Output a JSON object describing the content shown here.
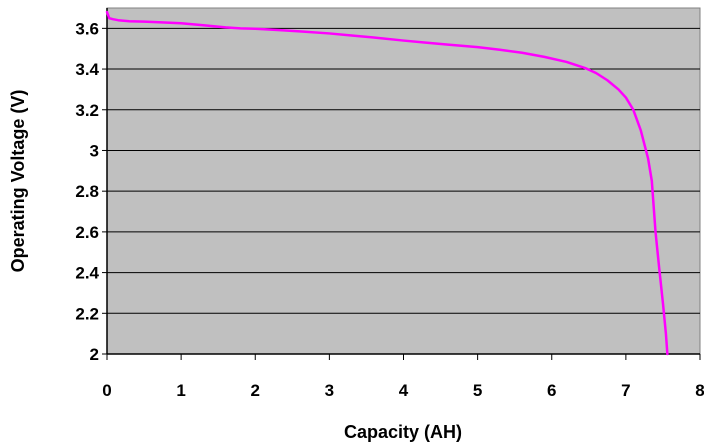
{
  "chart_data": {
    "type": "line",
    "title": "",
    "xlabel": "Capacity (AH)",
    "ylabel": "Operating Voltage (V)",
    "xlim": [
      0,
      8
    ],
    "ylim": [
      2,
      3.7
    ],
    "x_ticks": [
      {
        "value": 0,
        "label": "0"
      },
      {
        "value": 1,
        "label": "1"
      },
      {
        "value": 2,
        "label": "2"
      },
      {
        "value": 3,
        "label": "3"
      },
      {
        "value": 4,
        "label": "4"
      },
      {
        "value": 5,
        "label": "5"
      },
      {
        "value": 6,
        "label": "6"
      },
      {
        "value": 7,
        "label": "7"
      },
      {
        "value": 8,
        "label": "8"
      }
    ],
    "y_ticks": [
      {
        "value": 2.0,
        "label": "2"
      },
      {
        "value": 2.2,
        "label": "2.2"
      },
      {
        "value": 2.4,
        "label": "2.4"
      },
      {
        "value": 2.6,
        "label": "2.6"
      },
      {
        "value": 2.8,
        "label": "2.8"
      },
      {
        "value": 3.0,
        "label": "3"
      },
      {
        "value": 3.2,
        "label": "3.2"
      },
      {
        "value": 3.4,
        "label": "3.4"
      },
      {
        "value": 3.6,
        "label": "3.6"
      }
    ],
    "grid": {
      "horizontal": true,
      "vertical": false
    },
    "legend": "none",
    "colors": {
      "plot_background": "#c0c0c0",
      "gridline": "#000000",
      "series": "#ff00ff"
    },
    "series": [
      {
        "x": [
          0,
          0.03,
          0.08,
          0.15,
          0.3,
          0.5,
          0.7,
          1.0,
          1.3,
          1.6,
          1.8,
          2.0,
          2.3,
          2.6,
          3.0,
          3.3,
          3.6,
          4.0,
          4.3,
          4.6,
          5.0,
          5.3,
          5.6,
          5.9,
          6.2,
          6.45,
          6.6,
          6.75,
          6.9,
          7.0,
          7.1,
          7.2,
          7.3,
          7.35,
          7.4,
          7.45,
          7.5,
          7.54,
          7.56
        ],
        "y": [
          3.68,
          3.65,
          3.645,
          3.64,
          3.635,
          3.633,
          3.63,
          3.625,
          3.615,
          3.605,
          3.6,
          3.598,
          3.592,
          3.585,
          3.575,
          3.565,
          3.555,
          3.54,
          3.53,
          3.52,
          3.508,
          3.495,
          3.48,
          3.46,
          3.435,
          3.405,
          3.38,
          3.345,
          3.3,
          3.26,
          3.2,
          3.1,
          2.96,
          2.85,
          2.6,
          2.42,
          2.25,
          2.1,
          2.0
        ]
      }
    ]
  }
}
